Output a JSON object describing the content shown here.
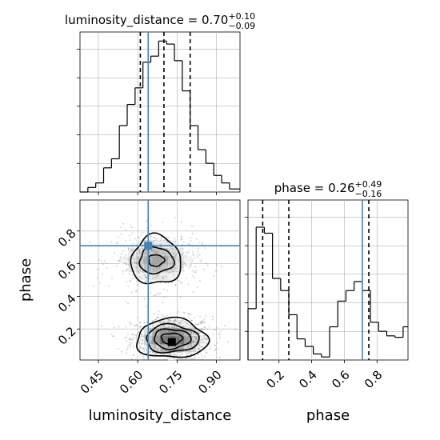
{
  "chart_data": {
    "type": "corner",
    "parameters": [
      "luminosity_distance",
      "phase"
    ],
    "panels": [
      {
        "id": "hist-luminosity-distance",
        "type": "histogram",
        "title": {
          "prefix": "luminosity_distance = 0.70",
          "sup": "+0.10",
          "sub": "−0.09"
        },
        "xlim": [
          0.38,
          0.99
        ],
        "ylim": [
          0,
          1.0
        ],
        "bin_edges": [
          0.38,
          0.41,
          0.44,
          0.47,
          0.5,
          0.53,
          0.56,
          0.59,
          0.62,
          0.65,
          0.68,
          0.71,
          0.74,
          0.77,
          0.8,
          0.83,
          0.86,
          0.89,
          0.92,
          0.95,
          0.99
        ],
        "counts": [
          0.0,
          0.03,
          0.06,
          0.16,
          0.22,
          0.44,
          0.58,
          0.69,
          0.86,
          0.9,
          1.0,
          0.98,
          0.87,
          0.67,
          0.44,
          0.28,
          0.19,
          0.11,
          0.06,
          0.02
        ],
        "quantiles": [
          0.61,
          0.7,
          0.8
        ],
        "truth": 0.64,
        "xticks": [
          0.45,
          0.6,
          0.75,
          0.9
        ],
        "show_ticklabels": false
      },
      {
        "id": "hist-phase",
        "type": "histogram",
        "title": {
          "prefix": "phase = 0.26",
          "sup": "+0.49",
          "sub": "−0.16"
        },
        "xlim": [
          0.01,
          0.99
        ],
        "ylim": [
          0,
          1.0
        ],
        "bin_edges": [
          0.01,
          0.06,
          0.11,
          0.16,
          0.21,
          0.26,
          0.31,
          0.36,
          0.41,
          0.46,
          0.51,
          0.56,
          0.61,
          0.66,
          0.71,
          0.76,
          0.81,
          0.86,
          0.91,
          0.96,
          0.99
        ],
        "counts": [
          0.34,
          0.88,
          0.84,
          0.54,
          0.46,
          0.3,
          0.14,
          0.09,
          0.04,
          0.02,
          0.22,
          0.39,
          0.46,
          0.52,
          0.46,
          0.25,
          0.19,
          0.16,
          0.15,
          0.22
        ],
        "quantiles": [
          0.1,
          0.26,
          0.75
        ],
        "truth": 0.71,
        "xticks": [
          0.2,
          0.4,
          0.6,
          0.8
        ],
        "xticklabels": [
          "0.2",
          "0.4",
          "0.6",
          "0.8"
        ],
        "xlabel": "phase"
      },
      {
        "id": "density-2d",
        "type": "contour",
        "x_param": "luminosity_distance",
        "y_param": "phase",
        "xlim": [
          0.38,
          0.99
        ],
        "ylim": [
          0.01,
          0.99
        ],
        "xticks": [
          0.45,
          0.6,
          0.75,
          0.9
        ],
        "xticklabels": [
          "0.45",
          "0.60",
          "0.75",
          "0.90"
        ],
        "yticks": [
          0.2,
          0.4,
          0.6,
          0.8
        ],
        "yticklabels": [
          "0.2",
          "0.4",
          "0.6",
          "0.8"
        ],
        "xlabel": "luminosity_distance",
        "ylabel": "phase",
        "truth": [
          0.64,
          0.71
        ],
        "max_point": [
          0.73,
          0.12
        ],
        "modes": [
          {
            "cx": 0.73,
            "cy": 0.14,
            "sx": 0.055,
            "sy": 0.045,
            "weight": 2.0,
            "contours": [
              {
                "rx": 0.04,
                "ry": 0.035
              },
              {
                "rx": 0.07,
                "ry": 0.06
              },
              {
                "rx": 0.1,
                "ry": 0.085
              },
              {
                "rx": 0.135,
                "ry": 0.12
              }
            ]
          },
          {
            "cx": 0.67,
            "cy": 0.62,
            "sx": 0.06,
            "sy": 0.06,
            "weight": 1.0,
            "contours": [
              {
                "rx": 0.03,
                "ry": 0.035
              },
              {
                "rx": 0.065,
                "ry": 0.08
              },
              {
                "rx": 0.095,
                "ry": 0.15
              }
            ]
          }
        ]
      }
    ]
  },
  "style": {
    "truth_color": "#4682b4",
    "line_color": "#000000",
    "grid_color": "#b0b0b0",
    "density_color": "#555555",
    "sample_color": "#8c8c8c"
  }
}
